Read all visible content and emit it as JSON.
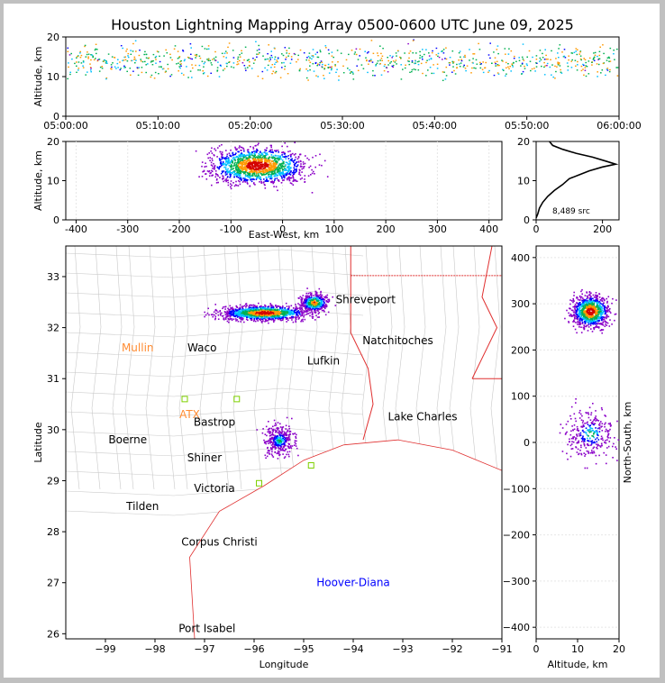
{
  "title": "Houston Lightning Mapping Array 0500-0600 UTC June 09, 2025",
  "colors": {
    "hot": "#d40000",
    "warm": "#ff9900",
    "mid": "#00b050",
    "cool": "#00bfff",
    "cold": "#0000ff",
    "purple": "#8a00c8",
    "border": "#e03030",
    "county": "#c8c8c8",
    "marker": "#7fd000"
  },
  "chart_data": [
    {
      "id": "time_altitude",
      "type": "scatter",
      "ylabel": "Altitude, km",
      "ylim": [
        0,
        20
      ],
      "yticks": [
        "0",
        "10",
        "20"
      ],
      "xlim": [
        "05:00:00",
        "06:00:00"
      ],
      "xticks": [
        "05:00:00",
        "05:10:00",
        "05:20:00",
        "05:30:00",
        "05:40:00",
        "05:50:00",
        "06:00:00"
      ],
      "altitude_band_km": [
        9,
        20
      ]
    },
    {
      "id": "eastwest_altitude",
      "type": "scatter",
      "xlabel": "East-West, km",
      "ylabel": "Altitude, km",
      "xlim": [
        -420,
        425
      ],
      "ylim": [
        0,
        20
      ],
      "xticks": [
        "-400",
        "-300",
        "-200",
        "-100",
        "0",
        "100",
        "200",
        "300",
        "400"
      ],
      "yticks": [
        "0",
        "10",
        "20"
      ],
      "cluster_center": [
        -50,
        14
      ],
      "cluster_halfwidth_km": [
        100,
        5
      ]
    },
    {
      "id": "altitude_histogram",
      "type": "line",
      "xlim": [
        0,
        250
      ],
      "ylim": [
        0,
        20
      ],
      "xticks": [
        "0",
        "200"
      ],
      "yticks": [
        "0",
        "10",
        "20"
      ],
      "annotation": "8,489 src",
      "profile": [
        [
          0,
          0.5
        ],
        [
          5,
          1.5
        ],
        [
          10,
          3
        ],
        [
          20,
          4.5
        ],
        [
          35,
          6
        ],
        [
          55,
          7.5
        ],
        [
          80,
          9
        ],
        [
          100,
          10.5
        ],
        [
          130,
          11.5
        ],
        [
          160,
          12.5
        ],
        [
          200,
          13.5
        ],
        [
          240,
          14.2
        ],
        [
          210,
          15
        ],
        [
          170,
          16
        ],
        [
          120,
          17
        ],
        [
          80,
          18
        ],
        [
          50,
          19
        ],
        [
          40,
          20
        ]
      ]
    },
    {
      "id": "plan_view",
      "type": "scatter",
      "xlabel": "Longitude",
      "ylabel": "Latitude",
      "xlim": [
        -99.8,
        -91
      ],
      "ylim": [
        25.9,
        33.6
      ],
      "xticks": [
        "-99",
        "-98",
        "-97",
        "-96",
        "-95",
        "-94",
        "-93",
        "-92",
        "-91"
      ],
      "yticks": [
        "26",
        "27",
        "28",
        "29",
        "30",
        "31",
        "32",
        "33"
      ],
      "clusters": [
        {
          "center": [
            -95.8,
            32.3
          ],
          "spread": [
            0.9,
            0.15
          ],
          "intensity": "high"
        },
        {
          "center": [
            -94.8,
            32.5
          ],
          "spread": [
            0.3,
            0.2
          ],
          "intensity": "medium"
        },
        {
          "center": [
            -95.5,
            29.8
          ],
          "spread": [
            0.3,
            0.3
          ],
          "intensity": "low"
        }
      ],
      "cities": [
        {
          "name": "Shreveport",
          "lon": -93.75,
          "lat": 32.55,
          "color": "#000000"
        },
        {
          "name": "Natchitoches",
          "lon": -93.1,
          "lat": 31.75,
          "color": "#000000"
        },
        {
          "name": "Mullin",
          "lon": -98.35,
          "lat": 31.6,
          "color": "#ff8c33"
        },
        {
          "name": "Waco",
          "lon": -97.05,
          "lat": 31.6,
          "color": "#000000"
        },
        {
          "name": "Lufkin",
          "lon": -94.6,
          "lat": 31.35,
          "color": "#000000"
        },
        {
          "name": "ATX",
          "lon": -97.3,
          "lat": 30.3,
          "color": "#ff8c33"
        },
        {
          "name": "Bastrop",
          "lon": -96.8,
          "lat": 30.15,
          "color": "#000000"
        },
        {
          "name": "Lake Charles",
          "lon": -92.6,
          "lat": 30.25,
          "color": "#000000"
        },
        {
          "name": "Boerne",
          "lon": -98.55,
          "lat": 29.8,
          "color": "#000000"
        },
        {
          "name": "Shiner",
          "lon": -97.0,
          "lat": 29.45,
          "color": "#000000"
        },
        {
          "name": "Victoria",
          "lon": -96.8,
          "lat": 28.85,
          "color": "#000000"
        },
        {
          "name": "Tilden",
          "lon": -98.25,
          "lat": 28.5,
          "color": "#000000"
        },
        {
          "name": "Corpus Christi",
          "lon": -96.7,
          "lat": 27.8,
          "color": "#000000"
        },
        {
          "name": "Hoover-Diana",
          "lon": -94.0,
          "lat": 27.0,
          "color": "#0000ff"
        },
        {
          "name": "Port Isabel",
          "lon": -96.95,
          "lat": 26.1,
          "color": "#000000"
        }
      ]
    },
    {
      "id": "altitude_northsouth",
      "type": "scatter",
      "xlabel": "Altitude, km",
      "ylabel": "North-South, km",
      "xlim": [
        0,
        20
      ],
      "ylim": [
        -425,
        425
      ],
      "xticks": [
        "0",
        "10",
        "20"
      ],
      "yticks": [
        "-400",
        "-300",
        "-200",
        "-100",
        "0",
        "100",
        "200",
        "300",
        "400"
      ],
      "clusters": [
        {
          "center": [
            13,
            285
          ],
          "spread": [
            4.5,
            35
          ],
          "intensity": "high"
        },
        {
          "center": [
            13,
            20
          ],
          "spread": [
            6,
            55
          ],
          "intensity": "low"
        }
      ]
    }
  ]
}
